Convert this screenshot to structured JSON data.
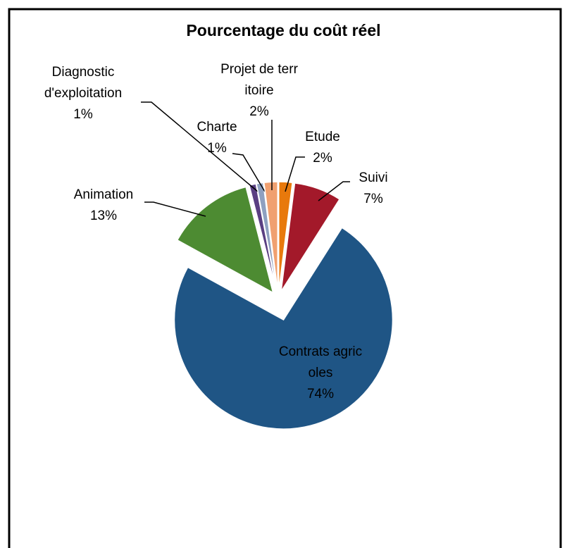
{
  "chart_data": {
    "type": "pie",
    "title": "Pourcentage du coût réel",
    "categories": [
      "Etude",
      "Suivi",
      "Contrats agricoles",
      "Animation",
      "Diagnostic d'exploitation",
      "Charte",
      "Projet de territoire"
    ],
    "values": [
      2,
      7,
      74,
      13,
      1,
      1,
      2
    ],
    "value_labels": [
      "2%",
      "7%",
      "74%",
      "13%",
      "1%",
      "1%",
      "2%"
    ],
    "colors": [
      "#e8790c",
      "#a3192a",
      "#1f5585",
      "#4d8b32",
      "#5a3f82",
      "#8ea0c0",
      "#f0a070"
    ]
  }
}
